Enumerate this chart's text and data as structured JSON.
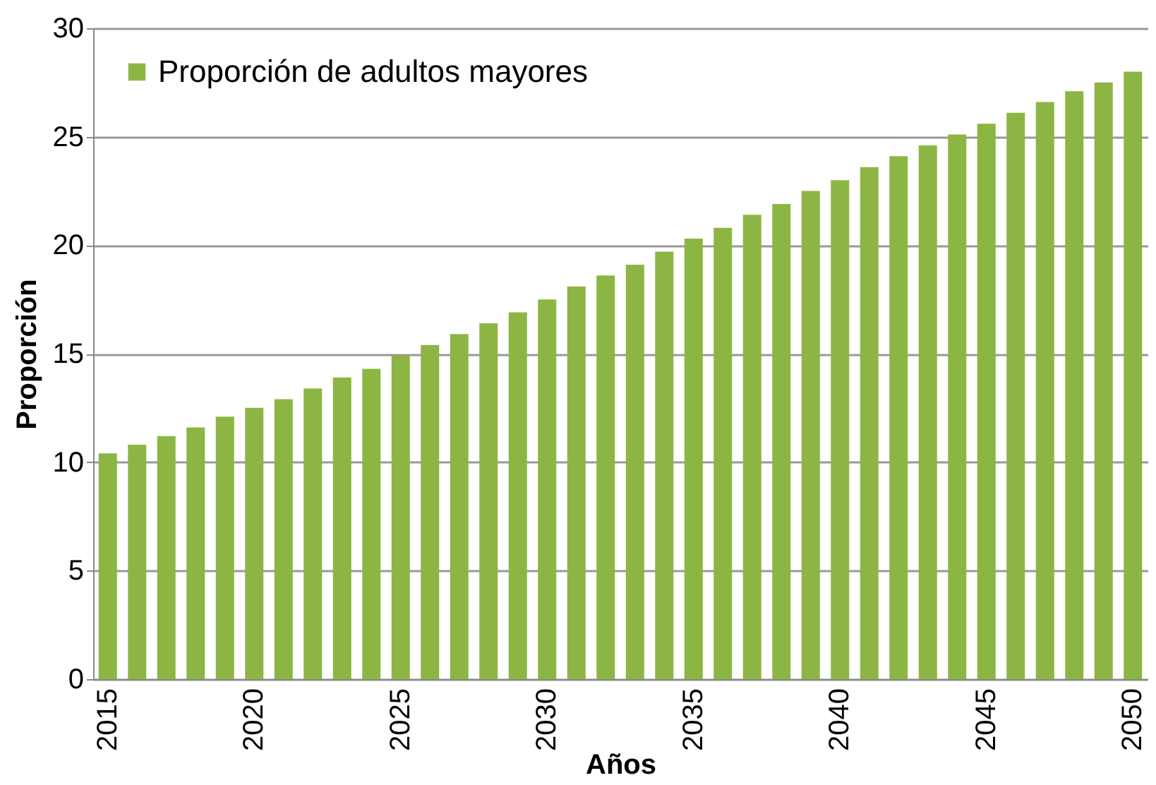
{
  "chart_data": {
    "type": "bar",
    "xlabel": "Años",
    "ylabel": "Proporción",
    "categories": [
      "2015",
      null,
      null,
      null,
      null,
      "2020",
      null,
      null,
      null,
      null,
      "2025",
      null,
      null,
      null,
      null,
      "2030",
      null,
      null,
      null,
      null,
      "2035",
      null,
      null,
      null,
      null,
      "2040",
      null,
      null,
      null,
      null,
      "2045",
      null,
      null,
      null,
      null,
      "2050"
    ],
    "series": [
      {
        "name": "Proporción de adultos mayores",
        "color": "#8db543",
        "values": [
          10.4,
          10.8,
          11.2,
          11.6,
          12.1,
          12.5,
          12.9,
          13.4,
          13.9,
          14.3,
          14.9,
          15.4,
          15.9,
          16.4,
          16.9,
          17.5,
          18.1,
          18.6,
          19.1,
          19.7,
          20.3,
          20.8,
          21.4,
          21.9,
          22.5,
          23.0,
          23.6,
          24.1,
          24.6,
          25.1,
          25.6,
          26.1,
          26.6,
          27.1,
          27.5,
          28.0
        ]
      }
    ],
    "ylim": [
      0,
      30
    ],
    "yticks": [
      0,
      5,
      10,
      15,
      20,
      25,
      30
    ],
    "grid": "y",
    "legend": "top left"
  }
}
